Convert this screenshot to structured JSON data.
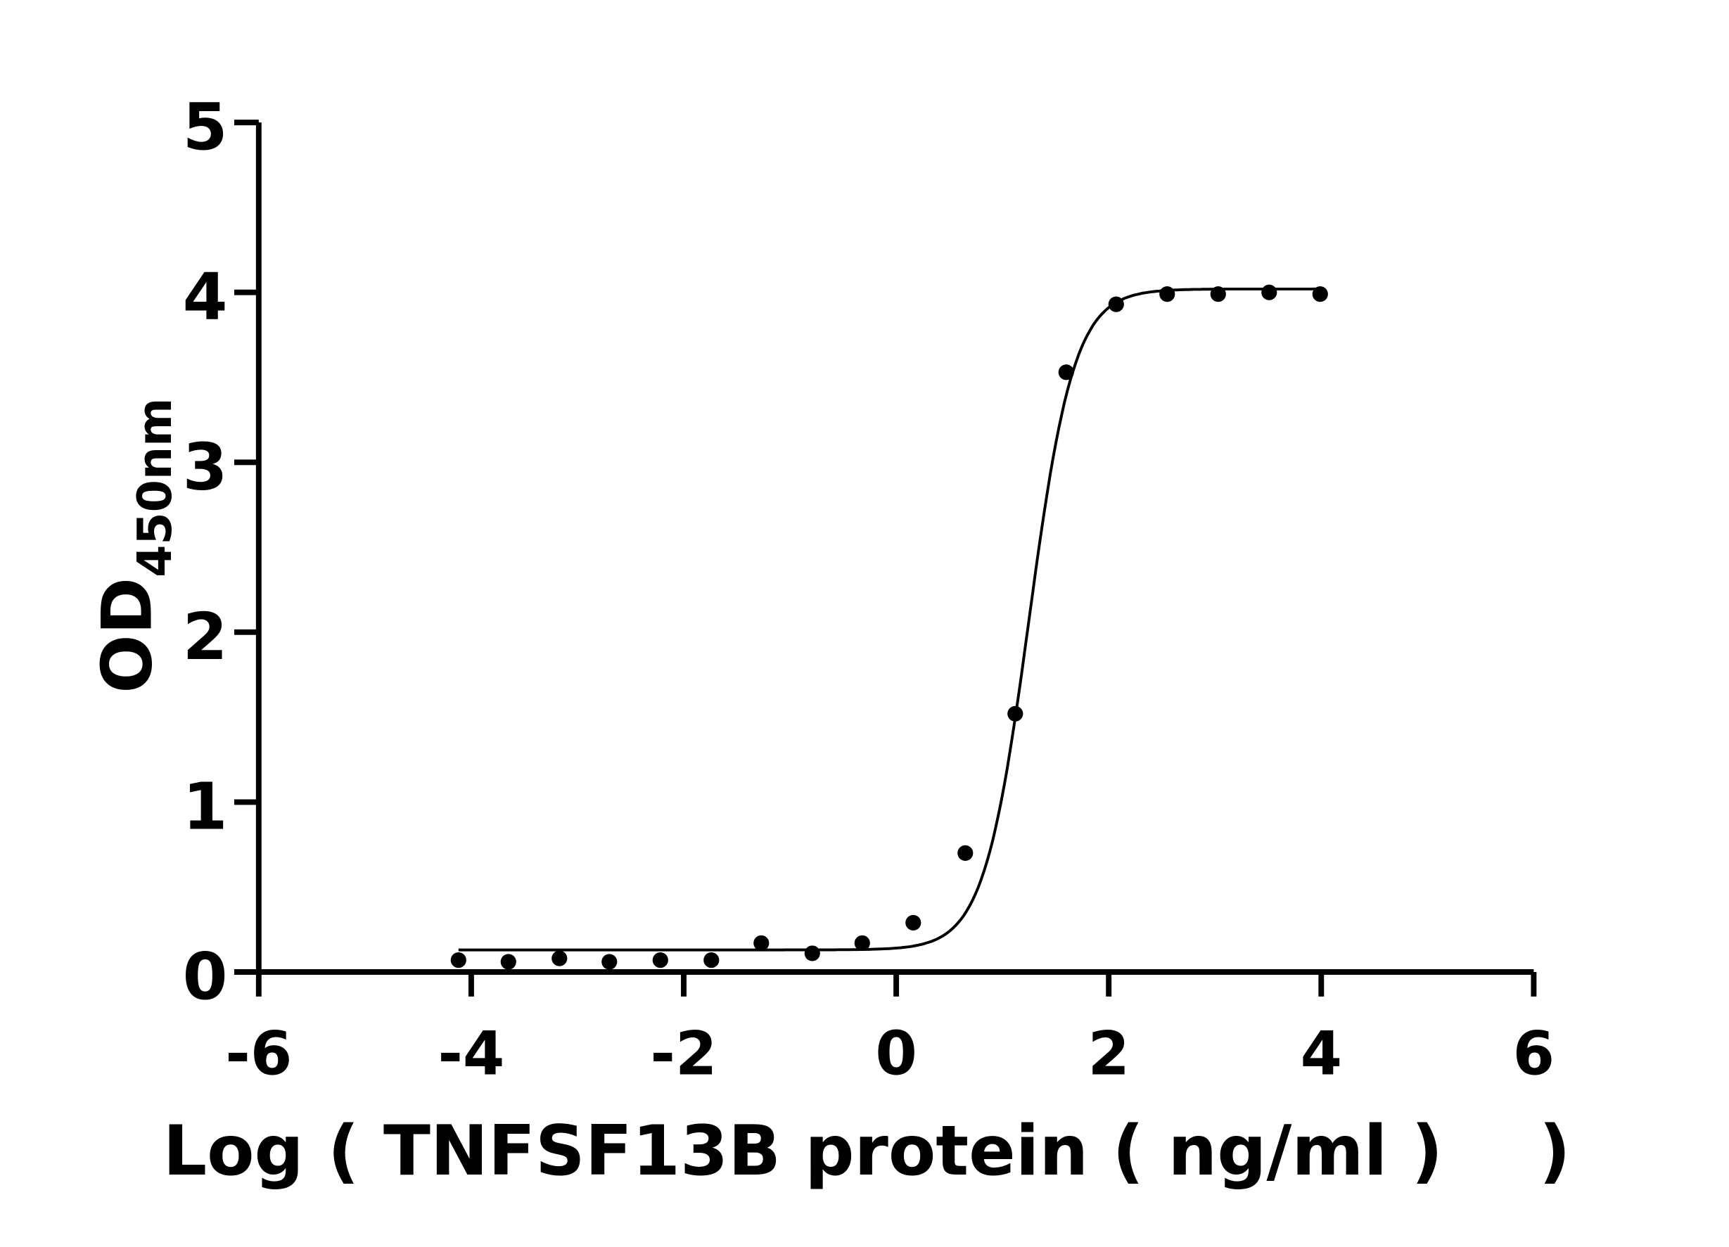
{
  "chart_data": {
    "type": "scatter",
    "title": "",
    "xlabel": "Log ( TNFSF13B protein ( ng/ml )    )",
    "ylabel_main": "OD",
    "ylabel_sub": "450nm",
    "xlim": [
      -6,
      6
    ],
    "ylim": [
      0,
      5
    ],
    "xticks": [
      "-6",
      "-4",
      "-2",
      "0",
      "2",
      "4",
      "6"
    ],
    "yticks": [
      "0",
      "1",
      "2",
      "3",
      "4",
      "5"
    ],
    "grid": false,
    "legend": "none",
    "points": [
      {
        "x": -4.12,
        "y": 0.07
      },
      {
        "x": -3.65,
        "y": 0.06
      },
      {
        "x": -3.17,
        "y": 0.08
      },
      {
        "x": -2.7,
        "y": 0.06
      },
      {
        "x": -2.22,
        "y": 0.07
      },
      {
        "x": -1.74,
        "y": 0.07
      },
      {
        "x": -1.27,
        "y": 0.17
      },
      {
        "x": -0.79,
        "y": 0.11
      },
      {
        "x": -0.32,
        "y": 0.17
      },
      {
        "x": 0.16,
        "y": 0.29
      },
      {
        "x": 0.65,
        "y": 0.7
      },
      {
        "x": 1.12,
        "y": 1.52
      },
      {
        "x": 1.6,
        "y": 3.53
      },
      {
        "x": 2.07,
        "y": 3.93
      },
      {
        "x": 2.55,
        "y": 3.99
      },
      {
        "x": 3.03,
        "y": 3.99
      },
      {
        "x": 3.51,
        "y": 4.0
      },
      {
        "x": 3.99,
        "y": 3.99
      }
    ],
    "fit": {
      "model": "4PL",
      "bottom": 0.13,
      "top": 4.02,
      "logEC50": 1.25,
      "hill": 2.05,
      "x_range": [
        -4.12,
        3.99
      ]
    },
    "colors": {
      "points": "#000000",
      "curve": "#000000",
      "axes": "#000000"
    }
  }
}
